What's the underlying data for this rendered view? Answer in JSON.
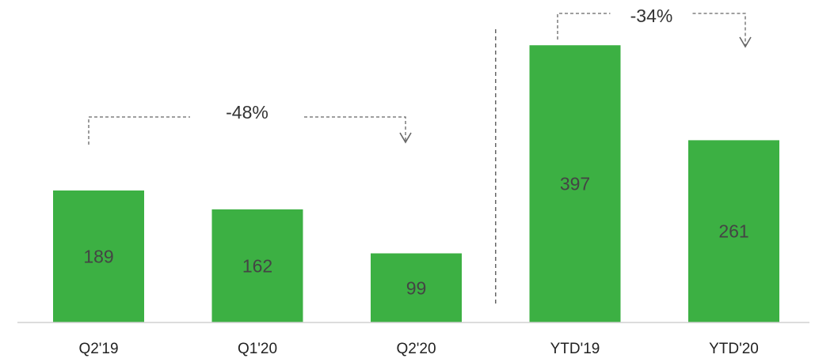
{
  "chart_data": {
    "type": "bar",
    "categories": [
      "Q2'19",
      "Q1'20",
      "Q2'20",
      "YTD'19",
      "YTD'20"
    ],
    "values": [
      189,
      162,
      99,
      397,
      261
    ],
    "value_labels": [
      "189",
      "162",
      "99",
      "397",
      "261"
    ],
    "title": "",
    "xlabel": "",
    "ylabel": "",
    "ylim": [
      0,
      420
    ],
    "grid": false,
    "legend": "none",
    "bar_color": "#3cb043",
    "annotations": [
      {
        "text": "-48%",
        "from": "Q2'19",
        "to": "Q2'20"
      },
      {
        "text": "-34%",
        "from": "YTD'19",
        "to": "YTD'20"
      }
    ],
    "separator_between": [
      "Q2'20",
      "YTD'19"
    ]
  }
}
